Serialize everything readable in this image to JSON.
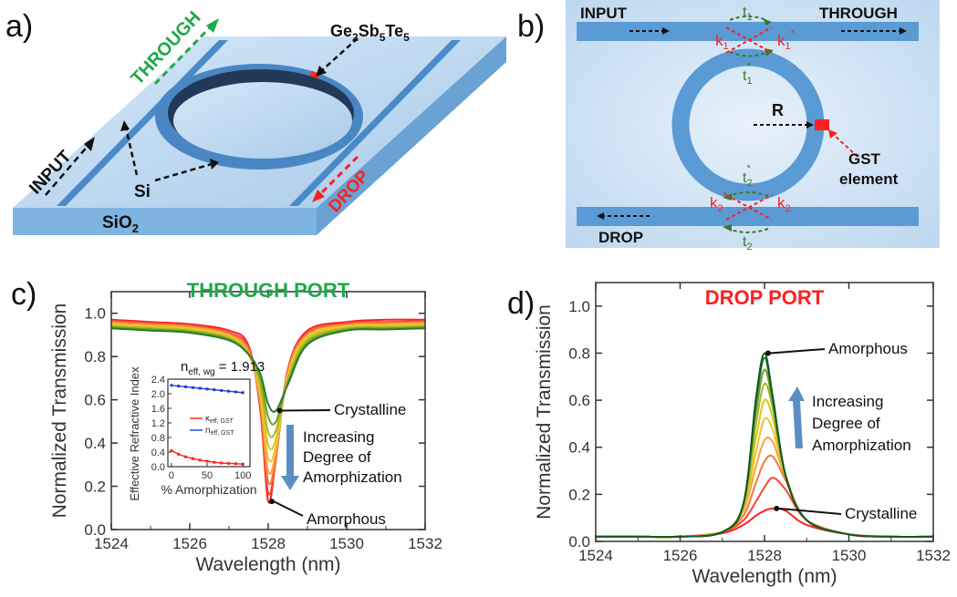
{
  "panels": {
    "a": {
      "letter": "a)",
      "labels": {
        "through": "THROUGH",
        "input": "INPUT",
        "drop": "DROP",
        "si": "Si",
        "sio2": "SiO",
        "sio2_sub": "2",
        "gst_ge": "Ge",
        "gst_ge_sub": "2",
        "gst_sb": "Sb",
        "gst_sb_sub": "5",
        "gst_te": "Te",
        "gst_te_sub": "5"
      }
    },
    "b": {
      "letter": "b)",
      "labels": {
        "input": "INPUT",
        "through": "THROUGH",
        "drop": "DROP",
        "radius": "R",
        "gst_line1": "GST",
        "gst_line2": "element",
        "t1": "t",
        "t1_sub": "1",
        "t1_star": "t",
        "t1_star_sub": "1",
        "t2": "t",
        "t2_sub": "2",
        "t2_star": "t",
        "t2_star_sub": "2",
        "k1": "k",
        "k1_sub": "1",
        "k1_star": "k",
        "k1_star_sub": "1",
        "k2": "k",
        "k2_sub": "2",
        "k2_star": "k",
        "k2_star_sub": "2",
        "star": "*"
      }
    },
    "c": {
      "letter": "c)"
    },
    "d": {
      "letter": "d)"
    }
  },
  "colors": {
    "waveguide": "#5b9bd5",
    "substrate": "#bcd7ef",
    "gst": "#ff2a2a",
    "through_green": "#1fa84a",
    "drop_red": "#ff2020",
    "coupling_green": "#3c7a28",
    "series_gradient": [
      "#ff2020",
      "#f7473a",
      "#f27a3b",
      "#f4a53a",
      "#f2c42f",
      "#d9c622",
      "#a8b81f",
      "#6ea02b",
      "#2e7a2d",
      "#0f5a24"
    ]
  },
  "chart_data": [
    {
      "id": "through-port",
      "type": "line",
      "title": "THROUGH PORT",
      "xlabel": "Wavelength (nm)",
      "ylabel": "Normalized Transmission",
      "xlim": [
        1524,
        1532
      ],
      "ylim": [
        0,
        1.1
      ],
      "xticks": [
        1524,
        1526,
        1528,
        1530,
        1532
      ],
      "yticks": [
        0.0,
        0.2,
        0.4,
        0.6,
        0.8,
        1.0
      ],
      "x": [
        1524,
        1525,
        1526,
        1527,
        1527.5,
        1527.8,
        1528,
        1528.2,
        1528.5,
        1529,
        1530,
        1531,
        1532
      ],
      "series": [
        {
          "values": [
            0.97,
            0.96,
            0.95,
            0.92,
            0.85,
            0.55,
            0.13,
            0.33,
            0.74,
            0.92,
            0.96,
            0.97,
            0.97
          ]
        },
        {
          "values": [
            0.965,
            0.955,
            0.945,
            0.91,
            0.84,
            0.56,
            0.17,
            0.33,
            0.74,
            0.91,
            0.955,
            0.96,
            0.965
          ]
        },
        {
          "values": [
            0.96,
            0.95,
            0.94,
            0.905,
            0.83,
            0.58,
            0.22,
            0.34,
            0.73,
            0.905,
            0.95,
            0.955,
            0.96
          ]
        },
        {
          "values": [
            0.955,
            0.945,
            0.935,
            0.9,
            0.82,
            0.6,
            0.27,
            0.36,
            0.72,
            0.9,
            0.945,
            0.95,
            0.955
          ]
        },
        {
          "values": [
            0.95,
            0.94,
            0.93,
            0.895,
            0.81,
            0.62,
            0.33,
            0.39,
            0.71,
            0.895,
            0.94,
            0.945,
            0.95
          ]
        },
        {
          "values": [
            0.945,
            0.935,
            0.925,
            0.89,
            0.81,
            0.64,
            0.39,
            0.42,
            0.7,
            0.885,
            0.935,
            0.94,
            0.945
          ]
        },
        {
          "values": [
            0.94,
            0.93,
            0.92,
            0.885,
            0.81,
            0.67,
            0.45,
            0.46,
            0.69,
            0.875,
            0.93,
            0.935,
            0.94
          ]
        },
        {
          "values": [
            0.935,
            0.925,
            0.915,
            0.88,
            0.81,
            0.7,
            0.52,
            0.5,
            0.68,
            0.865,
            0.925,
            0.93,
            0.935
          ]
        },
        {
          "values": [
            0.93,
            0.92,
            0.91,
            0.875,
            0.81,
            0.72,
            0.58,
            0.55,
            0.67,
            0.855,
            0.92,
            0.925,
            0.93
          ]
        }
      ],
      "annotations": [
        {
          "text": "Crystalline",
          "x": 1528.2,
          "y": 0.55
        },
        {
          "text": "Increasing",
          "x": 1528.6,
          "y": 0.43
        },
        {
          "text": "Degree of",
          "x": 1528.6,
          "y": 0.35
        },
        {
          "text": "Amorphization",
          "x": 1528.6,
          "y": 0.26
        },
        {
          "text": "Amorphous",
          "x": 1528.0,
          "y": 0.13
        }
      ],
      "inset": {
        "type": "line",
        "title": "n",
        "title_sub": "eff, wg",
        "title_value": " = 1.913",
        "ylabel": "Effective Refractive Index",
        "xlabel": "% Amorphization",
        "xlim": [
          -5,
          110
        ],
        "ylim": [
          0,
          2.4
        ],
        "xticks": [
          0,
          50,
          100
        ],
        "yticks": [
          0.0,
          0.4,
          0.8,
          1.2,
          1.6,
          2.0,
          2.4
        ],
        "ytick_labels": [
          "0.0",
          "0.4",
          "0.8",
          "1.2",
          "1.6",
          "2.0",
          "2.4"
        ],
        "x": [
          0,
          10,
          20,
          30,
          40,
          50,
          60,
          70,
          80,
          90,
          100
        ],
        "series": [
          {
            "name": "κ",
            "name_sub": "eff, GST",
            "color": "#ff2020",
            "values": [
              0.44,
              0.34,
              0.27,
              0.22,
              0.18,
              0.15,
              0.12,
              0.1,
              0.09,
              0.08,
              0.07
            ]
          },
          {
            "name": "n",
            "name_sub": "eff, GST",
            "color": "#1f3fd1",
            "values": [
              2.23,
              2.21,
              2.19,
              2.17,
              2.15,
              2.13,
              2.11,
              2.09,
              2.07,
              2.05,
              2.03
            ]
          }
        ]
      }
    },
    {
      "id": "drop-port",
      "type": "line",
      "title": "DROP PORT",
      "xlabel": "Wavelength (nm)",
      "ylabel": "Normalized Transmission",
      "xlim": [
        1524,
        1532
      ],
      "ylim": [
        0,
        1.1
      ],
      "xticks": [
        1524,
        1526,
        1528,
        1530,
        1532
      ],
      "yticks": [
        0.0,
        0.2,
        0.4,
        0.6,
        0.8,
        1.0
      ],
      "x": [
        1524,
        1525,
        1526,
        1527,
        1527.5,
        1527.8,
        1528,
        1528.2,
        1528.5,
        1529,
        1530,
        1531,
        1532
      ],
      "series": [
        {
          "values": [
            0.02,
            0.02,
            0.02,
            0.035,
            0.07,
            0.11,
            0.13,
            0.14,
            0.13,
            0.07,
            0.03,
            0.02,
            0.02
          ]
        },
        {
          "values": [
            0.02,
            0.02,
            0.02,
            0.04,
            0.09,
            0.17,
            0.23,
            0.27,
            0.22,
            0.09,
            0.03,
            0.02,
            0.02
          ]
        },
        {
          "values": [
            0.02,
            0.02,
            0.02,
            0.04,
            0.11,
            0.25,
            0.34,
            0.36,
            0.26,
            0.09,
            0.03,
            0.02,
            0.02
          ]
        },
        {
          "values": [
            0.02,
            0.02,
            0.02,
            0.04,
            0.13,
            0.32,
            0.43,
            0.42,
            0.27,
            0.09,
            0.03,
            0.02,
            0.02
          ]
        },
        {
          "values": [
            0.02,
            0.02,
            0.02,
            0.04,
            0.14,
            0.38,
            0.52,
            0.47,
            0.28,
            0.09,
            0.03,
            0.02,
            0.02
          ]
        },
        {
          "values": [
            0.02,
            0.02,
            0.02,
            0.04,
            0.15,
            0.44,
            0.6,
            0.52,
            0.28,
            0.09,
            0.03,
            0.02,
            0.02
          ]
        },
        {
          "values": [
            0.02,
            0.02,
            0.02,
            0.04,
            0.15,
            0.5,
            0.67,
            0.56,
            0.28,
            0.09,
            0.03,
            0.02,
            0.02
          ]
        },
        {
          "values": [
            0.02,
            0.02,
            0.02,
            0.04,
            0.16,
            0.55,
            0.73,
            0.58,
            0.28,
            0.09,
            0.03,
            0.02,
            0.02
          ]
        },
        {
          "values": [
            0.02,
            0.02,
            0.02,
            0.04,
            0.16,
            0.59,
            0.78,
            0.6,
            0.28,
            0.09,
            0.03,
            0.02,
            0.02
          ]
        },
        {
          "values": [
            0.02,
            0.02,
            0.02,
            0.04,
            0.16,
            0.61,
            0.8,
            0.61,
            0.28,
            0.09,
            0.03,
            0.02,
            0.02
          ]
        }
      ],
      "annotations": [
        {
          "text": "Amorphous",
          "x": 1528.0,
          "y": 0.8
        },
        {
          "text": "Increasing",
          "x": 1528.5,
          "y": 0.62
        },
        {
          "text": "Degree of",
          "x": 1528.5,
          "y": 0.54
        },
        {
          "text": "Amorphization",
          "x": 1528.5,
          "y": 0.45
        },
        {
          "text": "Crystalline",
          "x": 1528.2,
          "y": 0.14
        }
      ]
    }
  ]
}
